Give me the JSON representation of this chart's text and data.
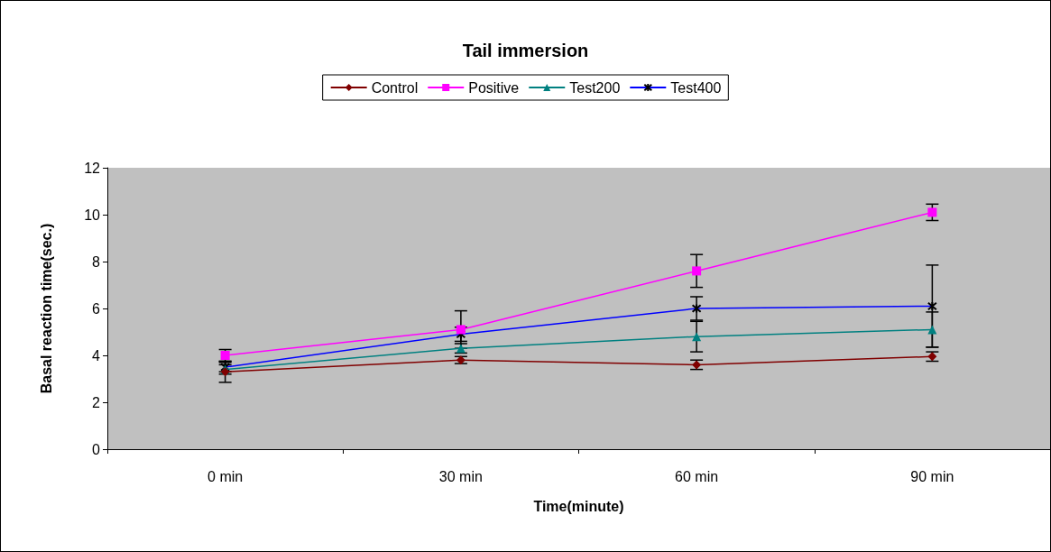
{
  "chart_data": {
    "type": "line",
    "title": "Tail immersion",
    "xlabel": "Time(minute)",
    "ylabel": "Basal reaction time(sec.)",
    "categories": [
      "0 min",
      "30 min",
      "60 min",
      "90 min"
    ],
    "ylim": [
      0,
      12
    ],
    "yticks": [
      0,
      2,
      4,
      6,
      8,
      10,
      12
    ],
    "grid": false,
    "legend": "top",
    "series": [
      {
        "name": "Control",
        "color": "#800000",
        "marker": "diamond",
        "values": [
          3.3,
          3.8,
          3.6,
          3.95
        ],
        "errors": [
          0.45,
          0.15,
          0.2,
          0.2
        ]
      },
      {
        "name": "Positive",
        "color": "#ff00ff",
        "marker": "square",
        "values": [
          4.0,
          5.1,
          7.6,
          10.1
        ],
        "errors": [
          0.25,
          0.8,
          0.7,
          0.35
        ]
      },
      {
        "name": "Test200",
        "color": "#008080",
        "marker": "triangle",
        "values": [
          3.4,
          4.3,
          4.8,
          5.1
        ],
        "errors": [
          0.2,
          0.2,
          0.65,
          0.75
        ]
      },
      {
        "name": "Test400",
        "color": "#0000ff",
        "marker": "cross",
        "values": [
          3.5,
          4.9,
          6.0,
          6.1
        ],
        "errors": [
          0.2,
          0.3,
          0.5,
          1.75
        ]
      }
    ]
  }
}
